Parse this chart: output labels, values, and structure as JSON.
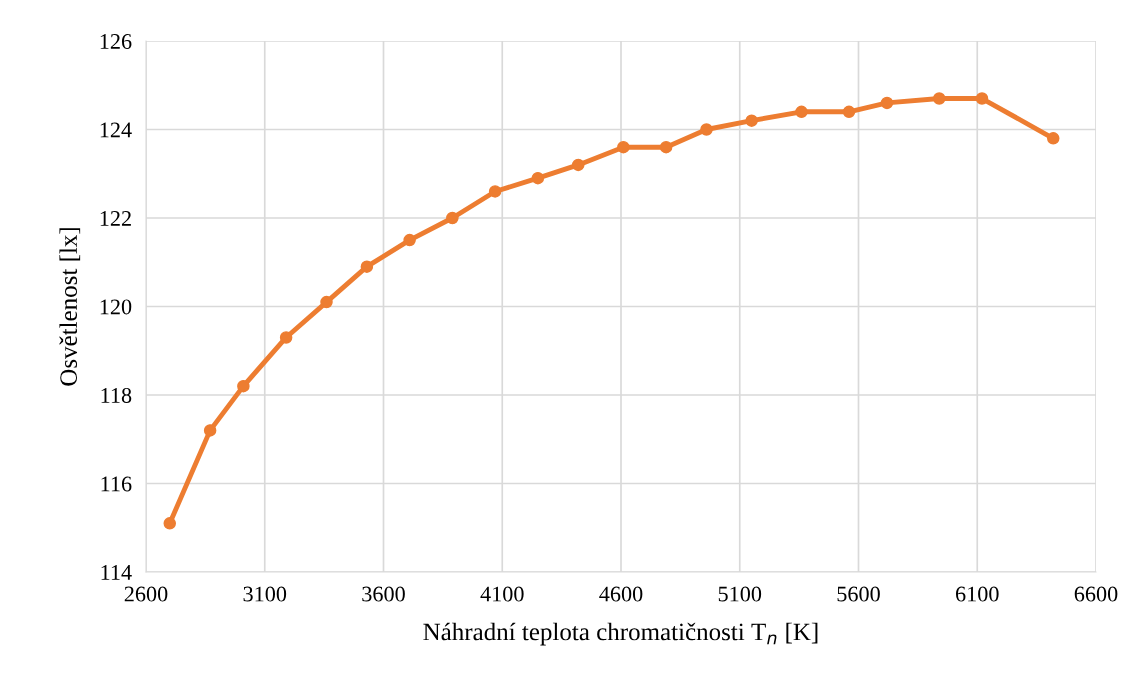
{
  "chart_data": {
    "type": "line",
    "xlabel": "Náhradní teplota chromatičnosti T$_{n}$ [K]",
    "ylabel": "Osvětlenost [lx]",
    "x": [
      2700,
      2870,
      3010,
      3190,
      3360,
      3530,
      3710,
      3890,
      4070,
      4250,
      4420,
      4610,
      4790,
      4960,
      5150,
      5360,
      5560,
      5720,
      5940,
      6120,
      6420
    ],
    "series": [
      {
        "color": "#ed7d31",
        "values": [
          115.1,
          117.2,
          118.2,
          119.3,
          120.1,
          120.9,
          121.5,
          122.0,
          122.6,
          122.9,
          123.2,
          123.6,
          123.6,
          124.0,
          124.2,
          124.4,
          124.4,
          124.6,
          124.7,
          124.7,
          123.8
        ]
      }
    ],
    "xlim": [
      2600,
      6600
    ],
    "xticks": [
      2600,
      3100,
      3600,
      4100,
      4600,
      5100,
      5600,
      6100,
      6600
    ],
    "ylim": [
      114,
      126
    ],
    "yticks": [
      114,
      116,
      118,
      120,
      122,
      124,
      126
    ],
    "grid": true,
    "legend": false,
    "marker": "circle",
    "line_style": "solid"
  }
}
